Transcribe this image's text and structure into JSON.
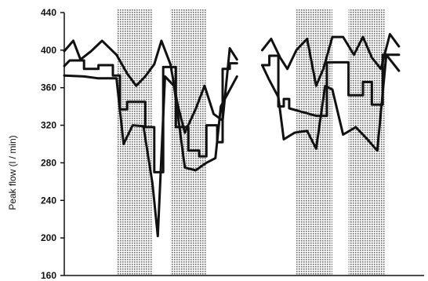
{
  "chart_data": {
    "type": "line",
    "title": "",
    "xlabel": "",
    "ylabel": "Peak flow  (l / min)",
    "ylim": [
      160,
      440
    ],
    "xlim": [
      0,
      10
    ],
    "y_ticks": [
      160,
      200,
      240,
      280,
      320,
      360,
      400,
      440
    ],
    "y_tick_labels": [
      "160",
      "200",
      "240",
      "280",
      "320",
      "360",
      "400",
      "440"
    ],
    "grid": false,
    "legend": "none",
    "colors": {
      "line": "#111111",
      "shade": "#9a9a9a"
    },
    "shaded_intervals": [
      [
        1.45,
        2.45
      ],
      [
        2.95,
        3.95
      ],
      [
        6.45,
        7.45
      ],
      [
        7.9,
        8.9
      ]
    ],
    "panels": [
      {
        "series": [
          {
            "style": "line",
            "points": [
              [
                0,
                399
              ],
              [
                0.25,
                410
              ],
              [
                0.45,
                390
              ],
              [
                0.75,
                399
              ],
              [
                1.05,
                410
              ],
              [
                1.45,
                395
              ],
              [
                1.75,
                375
              ],
              [
                2.0,
                362
              ],
              [
                2.25,
                372
              ],
              [
                2.5,
                385
              ],
              [
                2.7,
                410
              ],
              [
                2.95,
                385
              ],
              [
                3.15,
                342
              ],
              [
                3.35,
                312
              ],
              [
                3.65,
                337
              ],
              [
                3.9,
                362
              ],
              [
                4.15,
                332
              ],
              [
                4.4,
                325
              ],
              [
                4.6,
                402
              ],
              [
                4.8,
                390
              ]
            ]
          },
          {
            "style": "step",
            "points": [
              [
                0,
                383
              ],
              [
                0.15,
                389
              ],
              [
                0.55,
                389
              ],
              [
                0.55,
                380
              ],
              [
                0.95,
                380
              ],
              [
                0.95,
                384
              ],
              [
                1.35,
                384
              ],
              [
                1.35,
                373
              ],
              [
                1.55,
                373
              ],
              [
                1.55,
                337
              ],
              [
                1.75,
                337
              ],
              [
                1.75,
                345
              ],
              [
                2.25,
                345
              ],
              [
                2.25,
                318
              ],
              [
                2.5,
                318
              ],
              [
                2.5,
                270
              ],
              [
                2.75,
                270
              ],
              [
                2.75,
                382
              ],
              [
                3.1,
                382
              ],
              [
                3.1,
                318
              ],
              [
                3.45,
                318
              ],
              [
                3.45,
                293
              ],
              [
                3.75,
                293
              ],
              [
                3.75,
                287
              ],
              [
                3.95,
                287
              ],
              [
                3.95,
                320
              ],
              [
                4.25,
                320
              ],
              [
                4.25,
                302
              ],
              [
                4.4,
                302
              ],
              [
                4.4,
                380
              ],
              [
                4.6,
                380
              ],
              [
                4.6,
                386
              ],
              [
                4.8,
                386
              ]
            ]
          },
          {
            "style": "line",
            "points": [
              [
                0,
                373
              ],
              [
                0.55,
                372
              ],
              [
                0.95,
                370
              ],
              [
                1.45,
                370
              ],
              [
                1.65,
                300
              ],
              [
                1.9,
                320
              ],
              [
                2.2,
                319
              ],
              [
                2.45,
                258
              ],
              [
                2.6,
                202
              ],
              [
                2.8,
                372
              ],
              [
                3.05,
                362
              ],
              [
                3.35,
                275
              ],
              [
                3.65,
                272
              ],
              [
                3.95,
                280
              ],
              [
                4.2,
                285
              ],
              [
                4.35,
                340
              ],
              [
                4.8,
                372
              ]
            ]
          }
        ]
      },
      {
        "series": [
          {
            "style": "line",
            "points": [
              [
                5.5,
                400
              ],
              [
                5.75,
                412
              ],
              [
                6.0,
                392
              ],
              [
                6.2,
                380
              ],
              [
                6.45,
                400
              ],
              [
                6.75,
                412
              ],
              [
                7.0,
                362
              ],
              [
                7.2,
                380
              ],
              [
                7.45,
                414
              ],
              [
                7.75,
                414
              ],
              [
                8.05,
                395
              ],
              [
                8.3,
                414
              ],
              [
                8.55,
                392
              ],
              [
                8.8,
                380
              ],
              [
                9.05,
                417
              ],
              [
                9.3,
                404
              ]
            ]
          },
          {
            "style": "step",
            "points": [
              [
                5.5,
                384
              ],
              [
                5.7,
                384
              ],
              [
                5.7,
                394
              ],
              [
                5.95,
                394
              ],
              [
                5.95,
                340
              ],
              [
                6.1,
                340
              ],
              [
                6.1,
                348
              ],
              [
                6.25,
                348
              ],
              [
                6.25,
                338
              ],
              [
                7.0,
                330
              ],
              [
                7.3,
                330
              ],
              [
                7.3,
                387
              ],
              [
                7.9,
                387
              ],
              [
                7.9,
                352
              ],
              [
                8.3,
                352
              ],
              [
                8.3,
                366
              ],
              [
                8.55,
                366
              ],
              [
                8.55,
                342
              ],
              [
                8.85,
                342
              ],
              [
                8.85,
                395
              ],
              [
                9.3,
                395
              ]
            ]
          },
          {
            "style": "line",
            "points": [
              [
                5.5,
                384
              ],
              [
                5.7,
                368
              ],
              [
                5.95,
                350
              ],
              [
                6.1,
                305
              ],
              [
                6.4,
                312
              ],
              [
                6.75,
                314
              ],
              [
                7.0,
                295
              ],
              [
                7.25,
                362
              ],
              [
                7.45,
                358
              ],
              [
                7.75,
                310
              ],
              [
                8.1,
                318
              ],
              [
                8.4,
                306
              ],
              [
                8.7,
                293
              ],
              [
                8.95,
                395
              ],
              [
                9.3,
                378
              ]
            ]
          }
        ]
      }
    ]
  }
}
